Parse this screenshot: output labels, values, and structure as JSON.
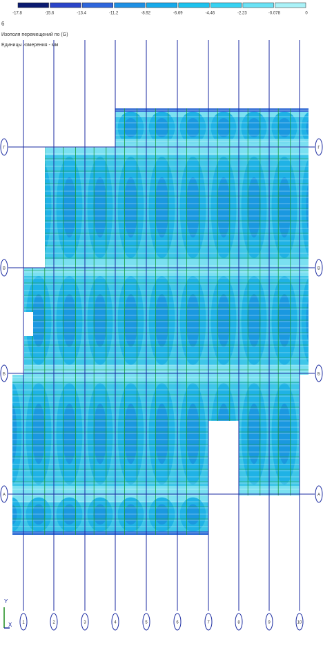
{
  "header": {
    "lines": [
      "6",
      "Изополя перемещений по (G)",
      "Единицы измерения - мм"
    ]
  },
  "legend": {
    "labels": [
      "-17.8",
      "-15.6",
      "-13.4",
      "-11.2",
      "-8.92",
      "-6.69",
      "-4.46",
      "-2.23",
      "-0.078",
      "0"
    ],
    "colors": [
      "#0b1a70",
      "#2a44c8",
      "#2f66dc",
      "#1e90e4",
      "#17aaea",
      "#1dc2ee",
      "#36d2f2",
      "#6ae2f5",
      "#aaf2f8"
    ]
  },
  "axes": {
    "columns": [
      "1",
      "2",
      "3",
      "4",
      "5",
      "6",
      "7",
      "8",
      "9",
      "10"
    ],
    "rows": [
      "Г",
      "В",
      "Б",
      "А"
    ]
  },
  "corner": {
    "y": "Y",
    "x": "X"
  }
}
